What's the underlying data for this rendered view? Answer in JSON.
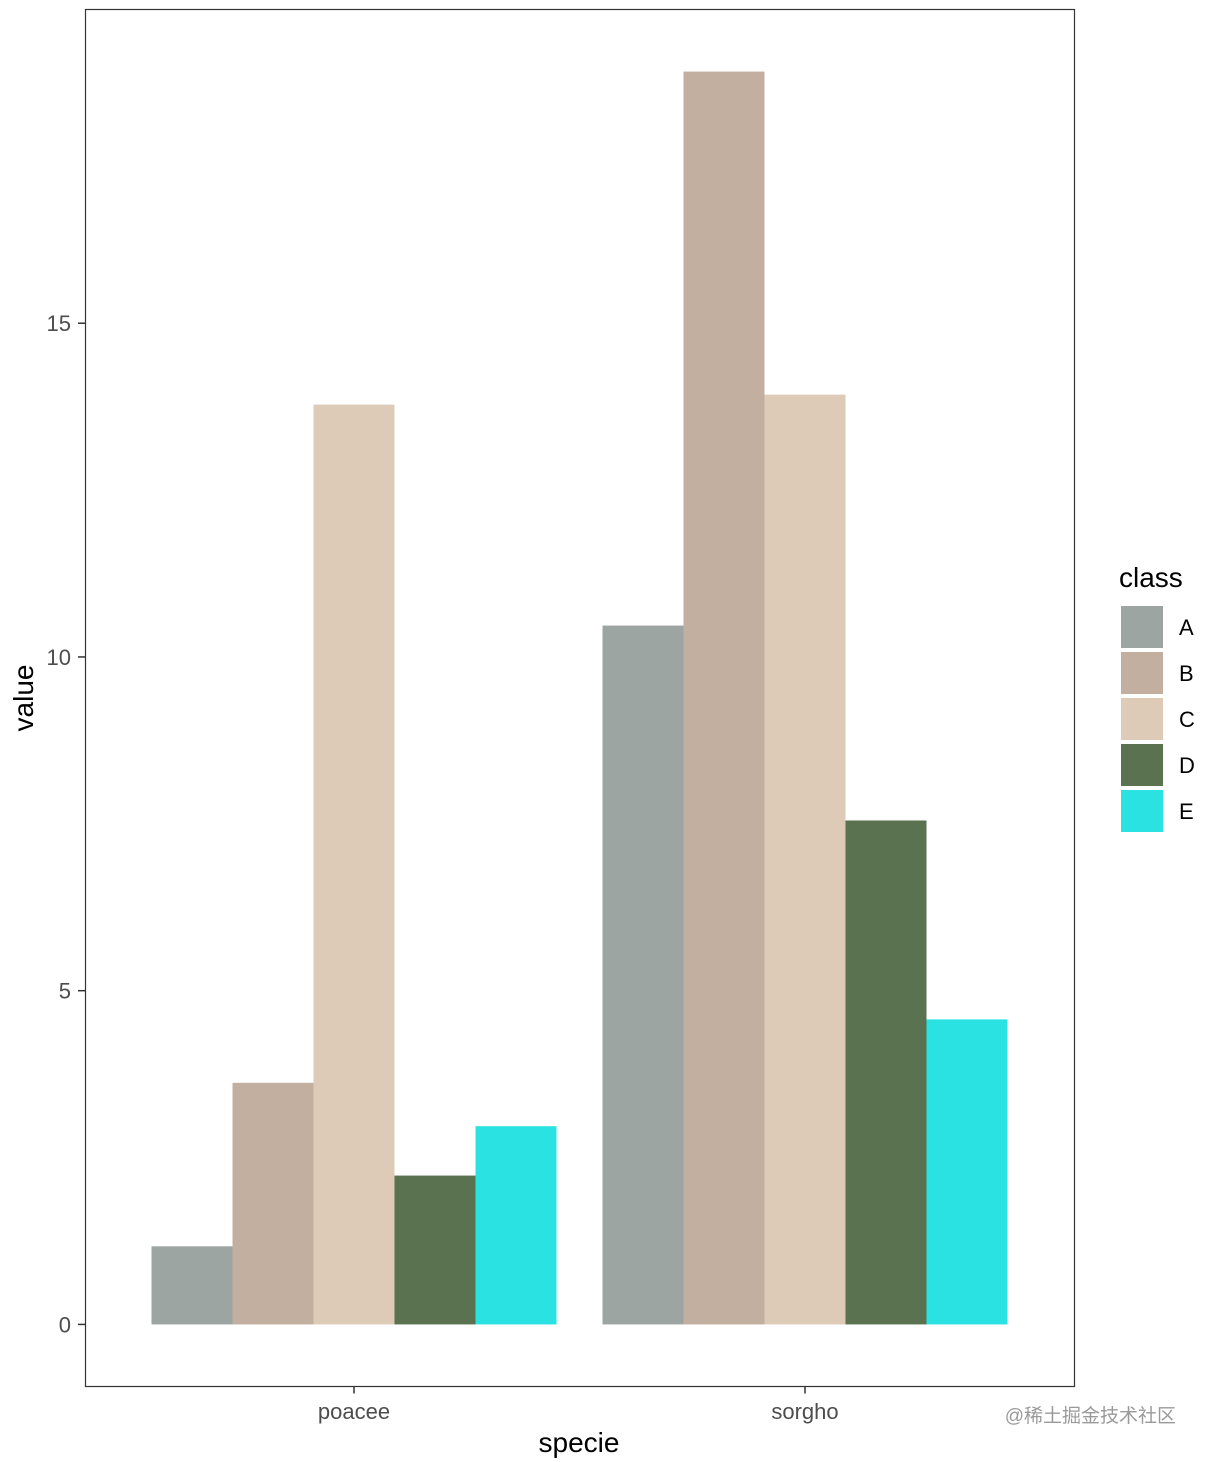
{
  "chart_data": {
    "type": "bar",
    "xlabel": "specie",
    "ylabel": "value",
    "categories": [
      "poacee",
      "sorgho"
    ],
    "series": [
      {
        "name": "A",
        "color": "#9DA5A2",
        "values": [
          1.17,
          10.47
        ]
      },
      {
        "name": "B",
        "color": "#C3AFA0",
        "values": [
          3.62,
          18.77
        ]
      },
      {
        "name": "C",
        "color": "#DDCBB8",
        "values": [
          13.78,
          13.93
        ]
      },
      {
        "name": "D",
        "color": "#5A7250",
        "values": [
          2.23,
          7.55
        ]
      },
      {
        "name": "E",
        "color": "#2BE2E2",
        "values": [
          2.97,
          4.57
        ]
      }
    ],
    "yticks": [
      0,
      5,
      10,
      15
    ],
    "ylim": [
      -0.93,
      19.7
    ],
    "grid": false,
    "legend": {
      "title": "class",
      "position": "right"
    }
  },
  "watermark": "@稀土掘金技术社区"
}
